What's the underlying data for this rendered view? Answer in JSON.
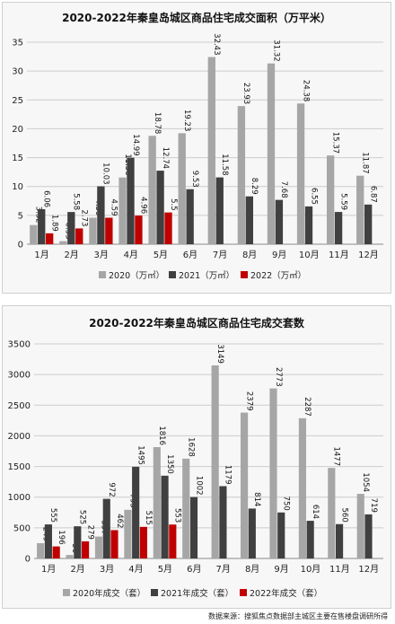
{
  "source_note": "数据来源：搜狐焦点数据部主城区主要在售楼盘调研所得",
  "colors": {
    "s2020": "#a6a6a6",
    "s2021": "#404040",
    "s2022": "#c00000"
  },
  "chart_data": [
    {
      "type": "bar",
      "title": "2020-2022年秦皇岛城区商品住宅成交面积（万平米）",
      "categories": [
        "1月",
        "2月",
        "3月",
        "4月",
        "5月",
        "6月",
        "7月",
        "8月",
        "9月",
        "10月",
        "11月",
        "12月"
      ],
      "ylim": [
        0,
        35
      ],
      "yticks": [
        0,
        5,
        10,
        15,
        20,
        25,
        30,
        35
      ],
      "grid": true,
      "legend_position": "bottom",
      "series": [
        {
          "name": "2020（万㎡）",
          "values": [
            3.32,
            0.53,
            4.59,
            11.56,
            18.78,
            19.23,
            32.43,
            23.93,
            31.32,
            24.38,
            15.37,
            11.87
          ]
        },
        {
          "name": "2021（万㎡）",
          "values": [
            6.06,
            5.58,
            10.03,
            14.99,
            12.74,
            9.53,
            11.58,
            8.29,
            7.68,
            6.55,
            5.59,
            6.87
          ]
        },
        {
          "name": "2022（万㎡）",
          "values": [
            1.89,
            2.73,
            4.59,
            4.96,
            5.5,
            null,
            null,
            null,
            null,
            null,
            null,
            null
          ]
        }
      ]
    },
    {
      "type": "bar",
      "title": "2020-2022年秦皇岛城区商品住宅成交套数",
      "categories": [
        "1月",
        "2月",
        "3月",
        "4月",
        "5月",
        "6月",
        "7月",
        "8月",
        "9月",
        "10月",
        "11月",
        "12月"
      ],
      "ylim": [
        0,
        3500
      ],
      "yticks": [
        0,
        500,
        1000,
        1500,
        2000,
        2500,
        3000,
        3500
      ],
      "grid": true,
      "legend_position": "bottom",
      "series": [
        {
          "name": "2020年成交（套）",
          "values": [
            249,
            56,
            357,
            793,
            1816,
            1628,
            3149,
            2379,
            2773,
            2287,
            1477,
            1054
          ]
        },
        {
          "name": "2021年成交（套）",
          "values": [
            555,
            525,
            972,
            1495,
            1350,
            1002,
            1179,
            814,
            750,
            614,
            560,
            719
          ]
        },
        {
          "name": "2022年成交（套）",
          "values": [
            196,
            279,
            462,
            515,
            553,
            null,
            null,
            null,
            null,
            null,
            null,
            null
          ]
        }
      ]
    }
  ]
}
